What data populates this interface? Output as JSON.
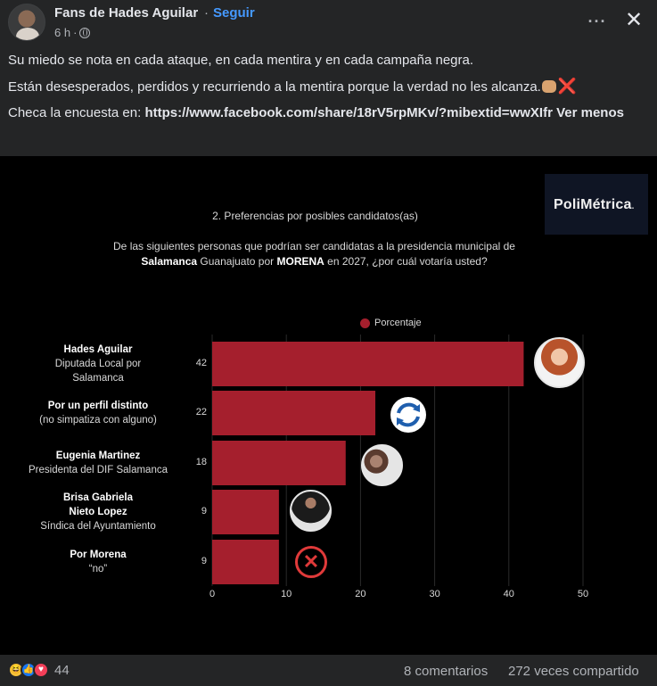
{
  "header": {
    "page_name": "Fans de Hades Aguilar",
    "separator": "·",
    "follow_label": "Seguir",
    "time": "6 h",
    "time_sep": "·",
    "more_label": "···",
    "close_label": "✕"
  },
  "post": {
    "line1": "Su miedo se nota en cada ataque, en cada mentira y en cada campaña negra.",
    "line2": "Están desesperados, perdidos y recurriendo a la mentira porque la verdad no les alcanza.",
    "line3_prefix": "Checa la encuesta en: ",
    "link": "https://www.facebook.com/share/18rV5rpMKv/?mibextid=wwXIfr",
    "see_more": "Ver menos"
  },
  "image": {
    "logo": "PoliMétrica",
    "logo_dot": ".",
    "legend_label": "Porcentaje",
    "question_part1": "De las siguientes personas que podrían ser candidatas a la presidencia municipal de",
    "question_bold1": "Salamanca",
    "question_part2": " Guanajuato por ",
    "question_bold2": "MORENA",
    "question_part3": " en 2027, ¿por cuál votaría usted?"
  },
  "chart_data": {
    "type": "bar",
    "orientation": "horizontal",
    "title": "2. Preferencias por posibles candidatos(as)",
    "categories": [
      {
        "name": "Hades Aguilar",
        "sub": "Diputada Local por Salamanca"
      },
      {
        "name": "Por un perfil distinto",
        "sub": "(no simpatiza con alguno)"
      },
      {
        "name": "Eugenia Martinez",
        "sub": "Presidenta del DIF Salamanca"
      },
      {
        "name": "Brisa Gabriela Nieto Lopez",
        "sub": "Síndica del Ayuntamiento"
      },
      {
        "name": "Por Morena",
        "sub": "“no”"
      }
    ],
    "series": [
      {
        "name": "Porcentaje",
        "values": [
          42,
          22,
          18,
          9,
          9
        ]
      }
    ],
    "xlim": [
      0,
      50
    ],
    "xticks": [
      "0",
      "10",
      "20",
      "30",
      "40",
      "50"
    ],
    "bar_color": "#a51f2d",
    "grid": true,
    "legend_position": "top"
  },
  "footer": {
    "reaction_count": "44",
    "comments": "8 comentarios",
    "shares": "272 veces compartido"
  },
  "colors": {
    "background": "#242526",
    "accent": "#4599ff",
    "bar": "#a51f2d"
  },
  "icons": [
    "globe-icon",
    "more-icon",
    "close-icon",
    "haha-reaction-icon",
    "like-reaction-icon",
    "love-reaction-icon",
    "refresh-icon",
    "x-circle-icon"
  ]
}
